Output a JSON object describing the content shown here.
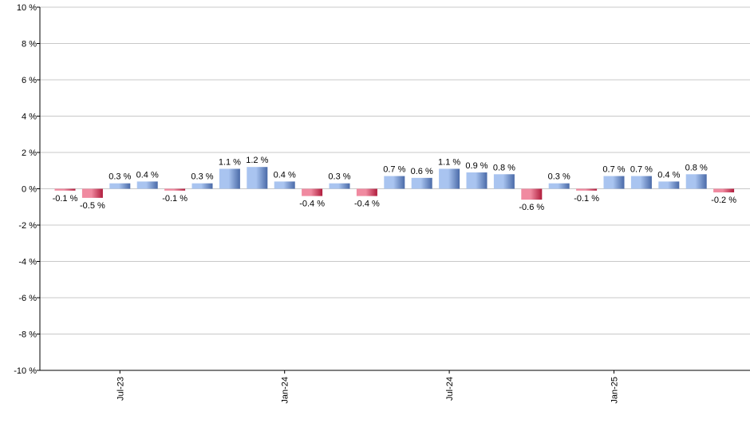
{
  "chart_data": {
    "type": "bar",
    "ylim": [
      -10,
      10
    ],
    "yticks": [
      10,
      8,
      6,
      4,
      2,
      0,
      -2,
      -4,
      -6,
      -8,
      -10
    ],
    "ytick_labels": [
      "10 %",
      "8 %",
      "6 %",
      "4 %",
      "2 %",
      "0 %",
      "-2 %",
      "-4 %",
      "-6 %",
      "-8 %",
      "-10 %"
    ],
    "grid": true,
    "xtick_labels": [
      {
        "label": "Jul-23",
        "index": 2
      },
      {
        "label": "Jan-24",
        "index": 8
      },
      {
        "label": "Jul-24",
        "index": 14
      },
      {
        "label": "Jan-25",
        "index": 20
      }
    ],
    "values": [
      -0.1,
      -0.5,
      0.3,
      0.4,
      -0.1,
      0.3,
      1.1,
      1.2,
      0.4,
      -0.4,
      0.3,
      -0.4,
      0.7,
      0.6,
      1.1,
      0.9,
      0.8,
      -0.6,
      0.3,
      -0.1,
      0.7,
      0.7,
      0.4,
      0.8,
      -0.2
    ],
    "value_labels": [
      "-0.1 %",
      "-0.5 %",
      "0.3 %",
      "0.4 %",
      "-0.1 %",
      "0.3 %",
      "1.1 %",
      "1.2 %",
      "0.4 %",
      "-0.4 %",
      "0.3 %",
      "-0.4 %",
      "0.7 %",
      "0.6 %",
      "1.1 %",
      "0.9 %",
      "0.8 %",
      "-0.6 %",
      "0.3 %",
      "-0.1 %",
      "0.7 %",
      "0.7 %",
      "0.4 %",
      "0.8 %",
      "-0.2 %"
    ],
    "colors": {
      "positive_light": "#a9c4f0",
      "positive_dark": "#4a6aa8",
      "negative_light": "#f08aa0",
      "negative_dark": "#b01c3c",
      "grid": "#c8c8c8",
      "axis": "#000000"
    }
  }
}
